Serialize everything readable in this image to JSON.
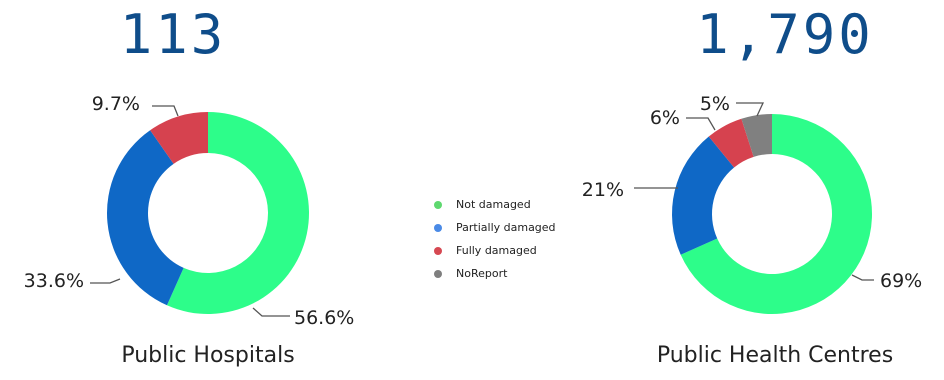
{
  "chart_data": [
    {
      "type": "pie",
      "total_label": "113",
      "title": "Public Hospitals",
      "categories": [
        "Not damaged",
        "Partially damaged",
        "Fully damaged"
      ],
      "values": [
        56.6,
        33.6,
        9.7
      ],
      "labels": [
        "56.6%",
        "33.6%",
        "9.7%"
      ],
      "colors": [
        "#2dfd8a",
        "#0f68c6",
        "#d6424f"
      ]
    },
    {
      "type": "pie",
      "total_label": "1,790",
      "title": "Public Health Centres",
      "categories": [
        "Not damaged",
        "Partially damaged",
        "Fully damaged",
        "NoReport"
      ],
      "values": [
        69,
        21,
        6,
        5
      ],
      "labels": [
        "69%",
        "21%",
        "6%",
        "5%"
      ],
      "colors": [
        "#2dfd8a",
        "#0f68c6",
        "#d6424f",
        "#808080"
      ]
    }
  ],
  "legend": [
    {
      "label": "Not damaged",
      "color": "#5ed86f"
    },
    {
      "label": "Partially damaged",
      "color": "#4a8ae6"
    },
    {
      "label": "Fully damaged",
      "color": "#d64852"
    },
    {
      "label": "NoReport",
      "color": "#7f7f7f"
    }
  ]
}
